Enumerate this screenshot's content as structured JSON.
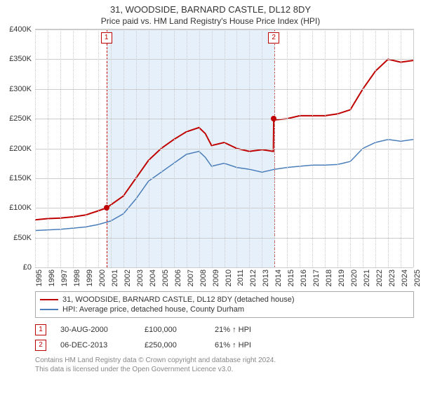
{
  "title": "31, WOODSIDE, BARNARD CASTLE, DL12 8DY",
  "subtitle": "Price paid vs. HM Land Registry's House Price Index (HPI)",
  "chart": {
    "type": "line",
    "background_color": "#ffffff",
    "grid_color": "#cccccc",
    "band_color": "#e6f0fa",
    "band_border_color": "#c00000",
    "ylim": [
      0,
      400000
    ],
    "ytick_step": 50000,
    "yticks": [
      "£0",
      "£50K",
      "£100K",
      "£150K",
      "£200K",
      "£250K",
      "£300K",
      "£350K",
      "£400K"
    ],
    "xlim": [
      1995,
      2025
    ],
    "xticks": [
      1995,
      1996,
      1997,
      1998,
      1999,
      2000,
      2001,
      2002,
      2003,
      2004,
      2005,
      2006,
      2007,
      2008,
      2009,
      2010,
      2011,
      2012,
      2013,
      2014,
      2015,
      2016,
      2017,
      2018,
      2019,
      2020,
      2021,
      2022,
      2023,
      2024,
      2025
    ],
    "markers": [
      {
        "label": "1",
        "x": 2000.66,
        "y": 100000
      },
      {
        "label": "2",
        "x": 2013.93,
        "y": 250000
      }
    ],
    "series": [
      {
        "name": "property",
        "color": "#c00000",
        "width": 2,
        "data": [
          [
            1995,
            80000
          ],
          [
            1996,
            82000
          ],
          [
            1997,
            83000
          ],
          [
            1998,
            85000
          ],
          [
            1999,
            88000
          ],
          [
            2000,
            95000
          ],
          [
            2000.66,
            100000
          ],
          [
            2001,
            105000
          ],
          [
            2002,
            120000
          ],
          [
            2003,
            150000
          ],
          [
            2004,
            180000
          ],
          [
            2005,
            200000
          ],
          [
            2006,
            215000
          ],
          [
            2007,
            228000
          ],
          [
            2008,
            235000
          ],
          [
            2008.5,
            225000
          ],
          [
            2009,
            205000
          ],
          [
            2010,
            210000
          ],
          [
            2011,
            200000
          ],
          [
            2012,
            195000
          ],
          [
            2013,
            198000
          ],
          [
            2013.9,
            195000
          ],
          [
            2013.93,
            250000
          ],
          [
            2014,
            248000
          ],
          [
            2015,
            250000
          ],
          [
            2016,
            255000
          ],
          [
            2017,
            255000
          ],
          [
            2018,
            255000
          ],
          [
            2019,
            258000
          ],
          [
            2020,
            265000
          ],
          [
            2021,
            300000
          ],
          [
            2022,
            330000
          ],
          [
            2023,
            350000
          ],
          [
            2024,
            345000
          ],
          [
            2025,
            348000
          ]
        ]
      },
      {
        "name": "hpi",
        "color": "#4a7ebb",
        "width": 1.5,
        "data": [
          [
            1995,
            62000
          ],
          [
            1996,
            63000
          ],
          [
            1997,
            64000
          ],
          [
            1998,
            66000
          ],
          [
            1999,
            68000
          ],
          [
            2000,
            72000
          ],
          [
            2001,
            78000
          ],
          [
            2002,
            90000
          ],
          [
            2003,
            115000
          ],
          [
            2004,
            145000
          ],
          [
            2005,
            160000
          ],
          [
            2006,
            175000
          ],
          [
            2007,
            190000
          ],
          [
            2008,
            195000
          ],
          [
            2008.5,
            185000
          ],
          [
            2009,
            170000
          ],
          [
            2010,
            175000
          ],
          [
            2011,
            168000
          ],
          [
            2012,
            165000
          ],
          [
            2013,
            160000
          ],
          [
            2014,
            165000
          ],
          [
            2015,
            168000
          ],
          [
            2016,
            170000
          ],
          [
            2017,
            172000
          ],
          [
            2018,
            172000
          ],
          [
            2019,
            173000
          ],
          [
            2020,
            178000
          ],
          [
            2021,
            200000
          ],
          [
            2022,
            210000
          ],
          [
            2023,
            215000
          ],
          [
            2024,
            212000
          ],
          [
            2025,
            215000
          ]
        ]
      }
    ]
  },
  "legend": {
    "items": [
      {
        "color": "#c00000",
        "label": "31, WOODSIDE, BARNARD CASTLE, DL12 8DY (detached house)"
      },
      {
        "color": "#4a7ebb",
        "label": "HPI: Average price, detached house, County Durham"
      }
    ]
  },
  "events": [
    {
      "marker": "1",
      "date": "30-AUG-2000",
      "price": "£100,000",
      "delta": "21% ↑ HPI"
    },
    {
      "marker": "2",
      "date": "06-DEC-2013",
      "price": "£250,000",
      "delta": "61% ↑ HPI"
    }
  ],
  "attribution": {
    "line1": "Contains HM Land Registry data © Crown copyright and database right 2024.",
    "line2": "This data is licensed under the Open Government Licence v3.0."
  }
}
